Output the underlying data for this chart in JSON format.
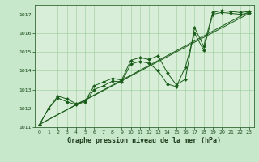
{
  "background_color": "#c8e8cc",
  "plot_bg_color": "#d8eed8",
  "grid_color": "#99cc99",
  "line_color": "#1a5c1a",
  "marker_color": "#1a5c1a",
  "xlabel": "Graphe pression niveau de la mer (hPa)",
  "ylim": [
    1011.0,
    1017.5
  ],
  "xlim": [
    -0.5,
    23.5
  ],
  "yticks": [
    1011,
    1012,
    1013,
    1014,
    1015,
    1016,
    1017
  ],
  "xticks": [
    0,
    1,
    2,
    3,
    4,
    5,
    6,
    7,
    8,
    9,
    10,
    11,
    12,
    13,
    14,
    15,
    16,
    17,
    18,
    19,
    20,
    21,
    22,
    23
  ],
  "series_main": {
    "x": [
      0,
      1,
      2,
      3,
      4,
      5,
      6,
      7,
      8,
      9,
      10,
      11,
      12,
      13,
      14,
      15,
      16,
      17,
      18,
      19,
      20,
      21,
      22,
      23
    ],
    "y": [
      1011.15,
      1012.0,
      1012.65,
      1012.5,
      1012.25,
      1012.4,
      1013.2,
      1013.4,
      1013.6,
      1013.5,
      1014.55,
      1014.7,
      1014.6,
      1014.8,
      1013.9,
      1013.25,
      1013.55,
      1016.3,
      1015.3,
      1017.1,
      1017.2,
      1017.15,
      1017.1,
      1017.15
    ]
  },
  "series_lower": {
    "x": [
      0,
      1,
      2,
      3,
      4,
      5,
      6,
      7,
      8,
      9,
      10,
      11,
      12,
      13,
      14,
      15,
      16,
      17,
      18,
      19,
      20,
      21,
      22,
      23
    ],
    "y": [
      1011.15,
      1012.0,
      1012.55,
      1012.35,
      1012.2,
      1012.35,
      1013.0,
      1013.2,
      1013.45,
      1013.4,
      1014.35,
      1014.5,
      1014.4,
      1014.0,
      1013.3,
      1013.15,
      1014.2,
      1016.0,
      1015.1,
      1017.0,
      1017.1,
      1017.05,
      1017.0,
      1017.05
    ]
  },
  "trend1": {
    "x": [
      0,
      23
    ],
    "y": [
      1011.15,
      1017.15
    ]
  },
  "trend2": {
    "x": [
      0,
      23
    ],
    "y": [
      1011.15,
      1017.05
    ]
  },
  "label_fontsize": 5.0,
  "tick_fontsize": 4.5,
  "xlabel_fontsize": 6.0,
  "lw": 0.7,
  "ms": 2.0
}
